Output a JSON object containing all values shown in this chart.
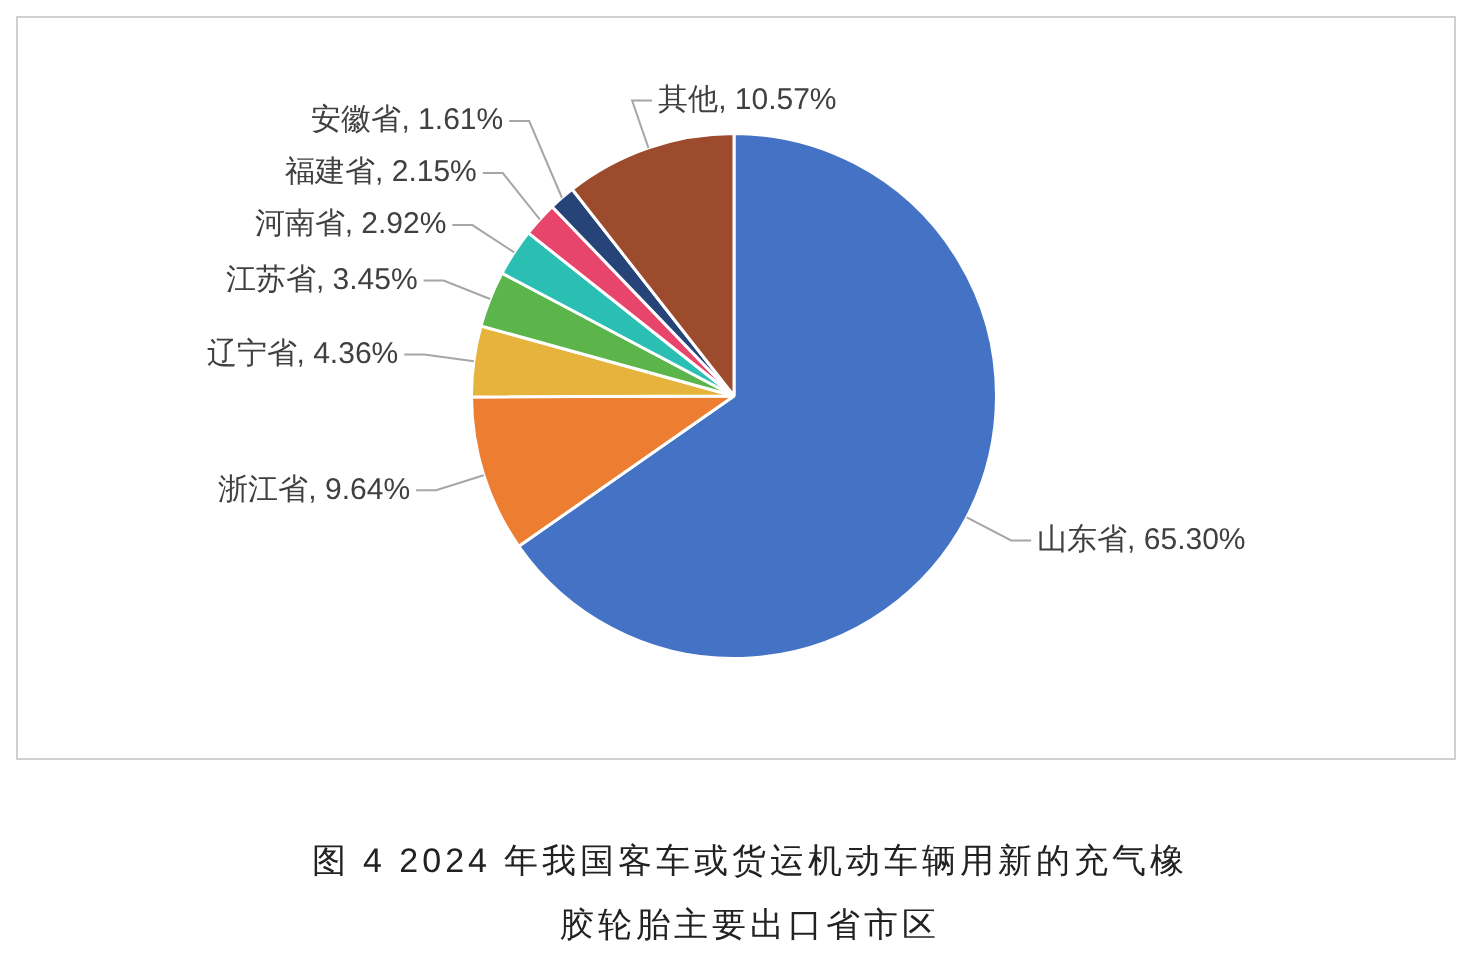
{
  "chart_data": {
    "type": "pie",
    "title": "图 4  2024 年我国客车或货运机动车辆用新的充气橡胶轮胎主要出口省市区",
    "categories": [
      "山东省",
      "浙江省",
      "辽宁省",
      "江苏省",
      "河南省",
      "福建省",
      "安徽省",
      "其他"
    ],
    "values": [
      65.3,
      9.64,
      4.36,
      3.45,
      2.92,
      2.15,
      1.61,
      10.57
    ],
    "value_labels": [
      "65.30%",
      "9.64%",
      "4.36%",
      "3.45%",
      "2.92%",
      "2.15%",
      "1.61%",
      "10.57%"
    ],
    "colors": [
      "#4472c4",
      "#ed7d31",
      "#e6b43c",
      "#5cb54a",
      "#2bbfb3",
      "#e8456c",
      "#264478",
      "#9c4b2c"
    ],
    "legend": false
  }
}
